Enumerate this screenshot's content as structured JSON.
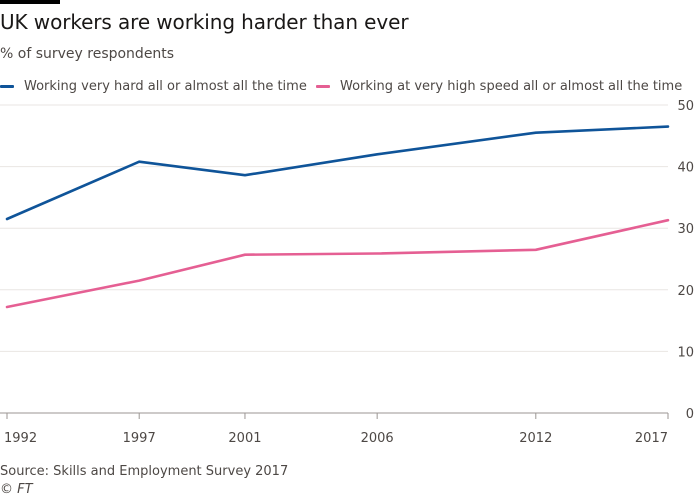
{
  "chart_data": {
    "type": "line",
    "title": "UK workers are working harder than ever",
    "subtitle": "% of survey respondents",
    "xlabel": "",
    "ylabel": "",
    "x": [
      "1992",
      "1997",
      "2001",
      "2006",
      "2012",
      "2017"
    ],
    "x_numeric": [
      1992,
      1997,
      2001,
      2006,
      2012,
      2017
    ],
    "ylim": [
      0,
      50
    ],
    "yticks": [
      0,
      10,
      20,
      30,
      40,
      50
    ],
    "grid": true,
    "legend_position": "top",
    "series": [
      {
        "name": "Working very hard all or almost all the time",
        "color": "#0f5499",
        "values": [
          31.5,
          40.8,
          38.6,
          42.0,
          45.5,
          46.5
        ]
      },
      {
        "name": "Working at very high speed all or almost all the time",
        "color": "#e55f93",
        "values": [
          17.2,
          21.5,
          25.7,
          25.9,
          26.5,
          31.3
        ]
      }
    ],
    "source": "Source: Skills and Employment Survey 2017",
    "credit": "© FT"
  }
}
